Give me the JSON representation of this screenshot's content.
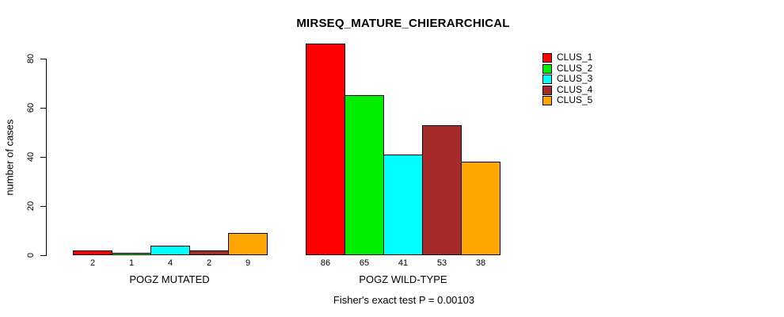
{
  "caption": "Fisher's exact test P = 0.00103",
  "chart_data": {
    "type": "bar",
    "title": "MIRSEQ_MATURE_CHIERARCHICAL",
    "xlabel": "",
    "ylabel": "number of cases",
    "categories": [
      "POGZ MUTATED",
      "POGZ WILD-TYPE"
    ],
    "series": [
      {
        "name": "CLUS_1",
        "color": "#FF0000",
        "values": [
          2,
          86
        ]
      },
      {
        "name": "CLUS_2",
        "color": "#00EE00",
        "values": [
          1,
          65
        ]
      },
      {
        "name": "CLUS_3",
        "color": "#00FFFF",
        "values": [
          4,
          41
        ]
      },
      {
        "name": "CLUS_4",
        "color": "#A52A2A",
        "values": [
          2,
          53
        ]
      },
      {
        "name": "CLUS_5",
        "color": "#FFA500",
        "values": [
          9,
          38
        ]
      }
    ],
    "yticks": [
      0,
      20,
      40,
      60,
      80
    ],
    "ylim": [
      0,
      86
    ],
    "grid": false,
    "bar_value_labels": true,
    "legend_position": "top-right"
  }
}
